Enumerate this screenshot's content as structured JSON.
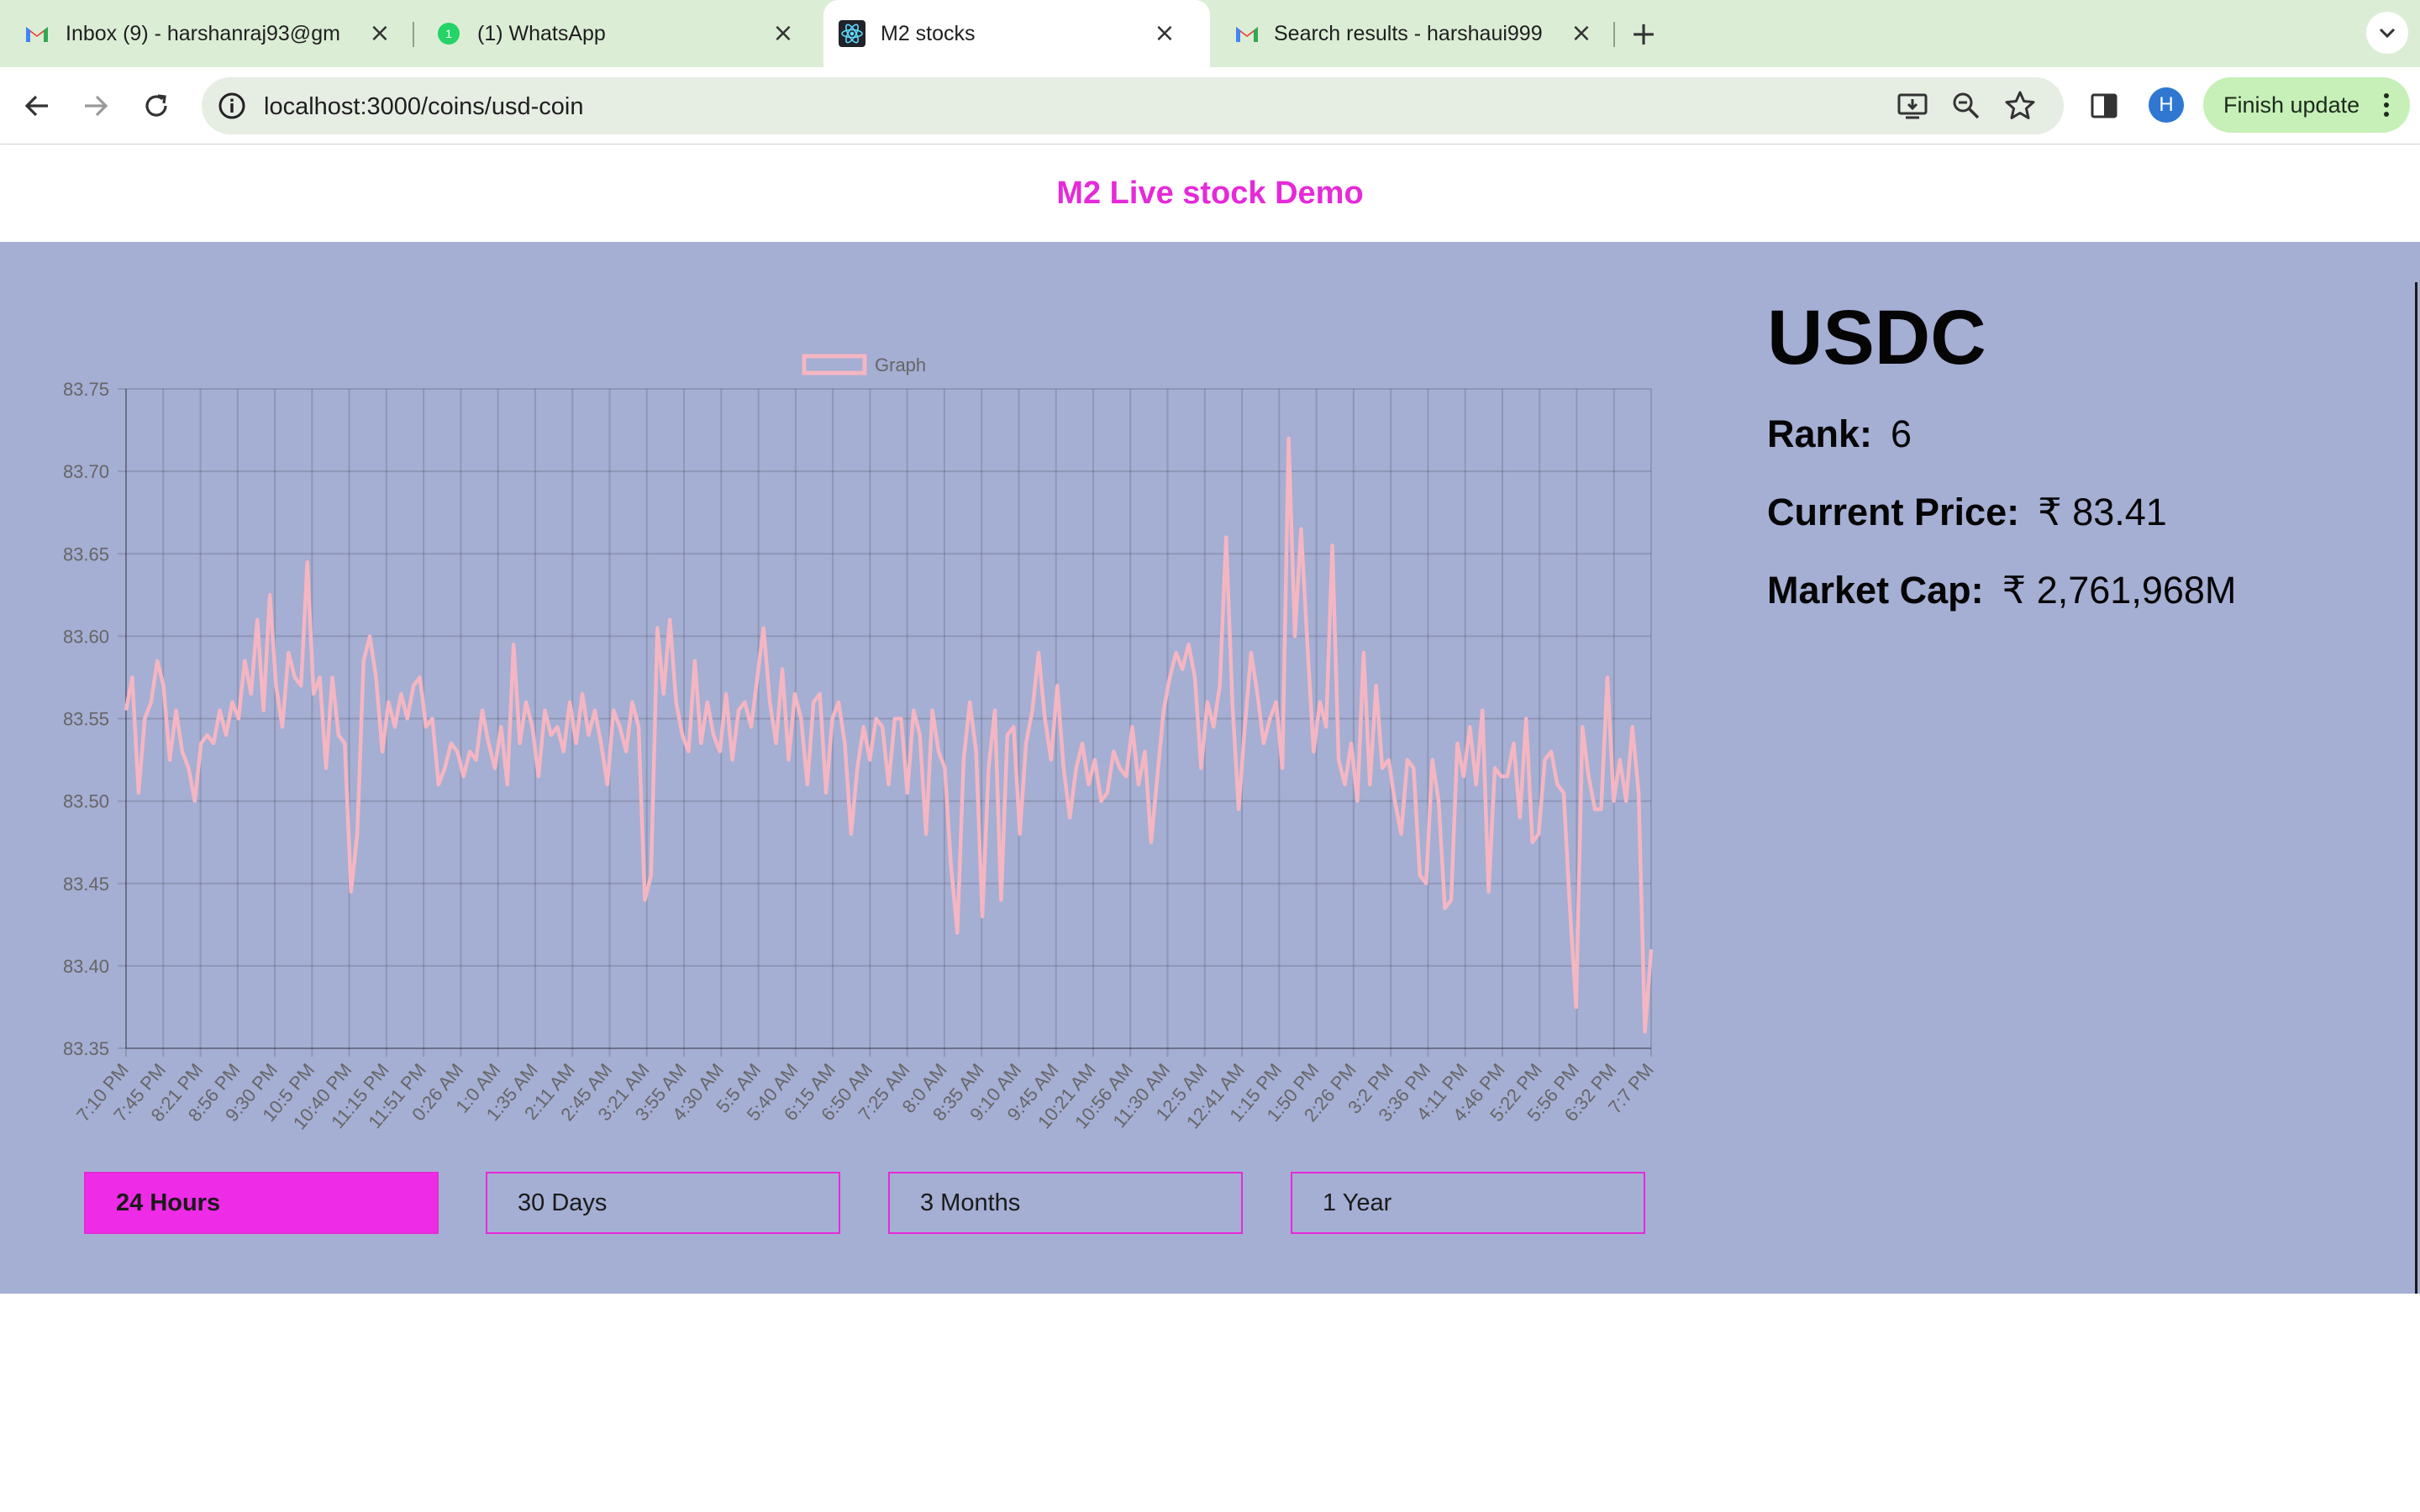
{
  "browser": {
    "tabs": [
      {
        "title": "Inbox (9) - harshanraj93@gm",
        "icon": "gmail-icon",
        "active": false
      },
      {
        "title": "(1) WhatsApp",
        "icon": "whatsapp-icon",
        "active": false
      },
      {
        "title": "M2 stocks",
        "icon": "react-icon",
        "active": true
      },
      {
        "title": "Search results - harshaui999",
        "icon": "gmail-icon",
        "active": false
      }
    ],
    "url": "localhost:3000/coins/usd-coin",
    "profile_initial": "H",
    "finish_update_label": "Finish update"
  },
  "header": {
    "title": "M2 Live stock Demo",
    "title_color": "#e52ad9"
  },
  "coin": {
    "name": "USDC",
    "rank_label": "Rank:",
    "rank_value": "6",
    "price_label": "Current Price:",
    "price_value": "₹ 83.41",
    "market_cap_label": "Market Cap:",
    "market_cap_value": "₹ 2,761,968M"
  },
  "range_buttons": [
    {
      "label": "24 Hours",
      "selected": true
    },
    {
      "label": "30 Days",
      "selected": false
    },
    {
      "label": "3 Months",
      "selected": false
    },
    {
      "label": "1 Year",
      "selected": false
    }
  ],
  "colors": {
    "background": "#a5aed3",
    "accent": "#e52ad9",
    "line": "#f4b6c2"
  },
  "chart_data": {
    "type": "line",
    "legend": "Graph",
    "legend_position": "top-center",
    "grid": true,
    "ylim": [
      83.35,
      83.75
    ],
    "y_ticks": [
      "83.75",
      "83.70",
      "83.65",
      "83.60",
      "83.55",
      "83.50",
      "83.45",
      "83.40",
      "83.35"
    ],
    "x_tick_labels": [
      "7:10 PM",
      "7:45 PM",
      "8:21 PM",
      "8:56 PM",
      "9:30 PM",
      "10:5 PM",
      "10:40 PM",
      "11:15 PM",
      "11:51 PM",
      "0:26 AM",
      "1:0 AM",
      "1:35 AM",
      "2:11 AM",
      "2:45 AM",
      "3:21 AM",
      "3:55 AM",
      "4:30 AM",
      "5:5 AM",
      "5:40 AM",
      "6:15 AM",
      "6:50 AM",
      "7:25 AM",
      "8:0 AM",
      "8:35 AM",
      "9:10 AM",
      "9:45 AM",
      "10:21 AM",
      "10:56 AM",
      "11:30 AM",
      "12:5 AM",
      "12:41 AM",
      "1:15 PM",
      "1:50 PM",
      "2:26 PM",
      "3:2 PM",
      "3:36 PM",
      "4:11 PM",
      "4:46 PM",
      "5:22 PM",
      "5:56 PM",
      "6:32 PM",
      "7:7 PM"
    ],
    "series": [
      {
        "name": "Graph",
        "values": [
          83.555,
          83.575,
          83.505,
          83.55,
          83.56,
          83.585,
          83.57,
          83.525,
          83.555,
          83.53,
          83.52,
          83.5,
          83.535,
          83.54,
          83.535,
          83.555,
          83.54,
          83.56,
          83.55,
          83.585,
          83.565,
          83.61,
          83.555,
          83.625,
          83.57,
          83.545,
          83.59,
          83.575,
          83.57,
          83.645,
          83.565,
          83.575,
          83.52,
          83.575,
          83.54,
          83.535,
          83.445,
          83.48,
          83.585,
          83.6,
          83.575,
          83.53,
          83.56,
          83.545,
          83.565,
          83.55,
          83.57,
          83.575,
          83.545,
          83.55,
          83.51,
          83.52,
          83.535,
          83.53,
          83.515,
          83.53,
          83.525,
          83.555,
          83.535,
          83.52,
          83.545,
          83.51,
          83.595,
          83.535,
          83.56,
          83.545,
          83.515,
          83.555,
          83.54,
          83.545,
          83.53,
          83.56,
          83.535,
          83.565,
          83.54,
          83.555,
          83.535,
          83.51,
          83.555,
          83.545,
          83.53,
          83.56,
          83.545,
          83.44,
          83.455,
          83.605,
          83.565,
          83.61,
          83.56,
          83.54,
          83.53,
          83.585,
          83.535,
          83.56,
          83.54,
          83.53,
          83.565,
          83.525,
          83.555,
          83.56,
          83.545,
          83.575,
          83.605,
          83.56,
          83.535,
          83.58,
          83.525,
          83.565,
          83.55,
          83.51,
          83.56,
          83.565,
          83.505,
          83.55,
          83.56,
          83.535,
          83.48,
          83.52,
          83.545,
          83.525,
          83.55,
          83.545,
          83.51,
          83.55,
          83.55,
          83.505,
          83.555,
          83.54,
          83.48,
          83.555,
          83.53,
          83.52,
          83.46,
          83.42,
          83.525,
          83.56,
          83.53,
          83.43,
          83.52,
          83.555,
          83.44,
          83.54,
          83.545,
          83.48,
          83.535,
          83.555,
          83.59,
          83.55,
          83.525,
          83.57,
          83.52,
          83.49,
          83.52,
          83.535,
          83.51,
          83.525,
          83.5,
          83.505,
          83.53,
          83.52,
          83.515,
          83.545,
          83.51,
          83.53,
          83.475,
          83.515,
          83.555,
          83.575,
          83.59,
          83.58,
          83.595,
          83.575,
          83.52,
          83.56,
          83.545,
          83.57,
          83.66,
          83.56,
          83.495,
          83.545,
          83.59,
          83.565,
          83.535,
          83.55,
          83.56,
          83.52,
          83.72,
          83.6,
          83.665,
          83.595,
          83.53,
          83.56,
          83.545,
          83.655,
          83.525,
          83.51,
          83.535,
          83.5,
          83.59,
          83.51,
          83.57,
          83.52,
          83.525,
          83.5,
          83.48,
          83.525,
          83.52,
          83.455,
          83.45,
          83.525,
          83.5,
          83.435,
          83.44,
          83.535,
          83.515,
          83.545,
          83.51,
          83.555,
          83.445,
          83.52,
          83.515,
          83.515,
          83.535,
          83.49,
          83.55,
          83.475,
          83.48,
          83.525,
          83.53,
          83.51,
          83.505,
          83.435,
          83.375,
          83.545,
          83.515,
          83.495,
          83.495,
          83.575,
          83.5,
          83.525,
          83.5,
          83.545,
          83.505,
          83.36,
          83.41
        ]
      }
    ]
  }
}
